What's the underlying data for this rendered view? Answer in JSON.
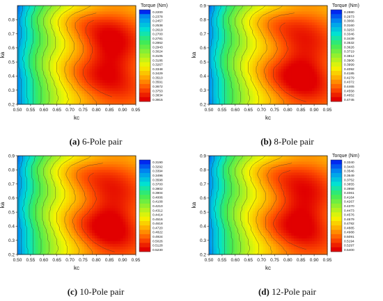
{
  "chart_data": [
    {
      "type": "heatmap",
      "panel_letter": "(a)",
      "caption_text": "6-Pole pair",
      "xlabel": "kc",
      "ylabel": "ka",
      "xlim": [
        0.5,
        0.95
      ],
      "ylim": [
        0.2,
        0.9
      ],
      "xticks": [
        "0.50",
        "0.55",
        "0.60",
        "0.65",
        "0.70",
        "0.75",
        "0.80",
        "0.85",
        "0.90",
        "0.95"
      ],
      "yticks": [
        "0.2",
        "0.3",
        "0.4",
        "0.5",
        "0.6",
        "0.7",
        "0.8"
      ],
      "legend_title": "Torque (Nm)",
      "levels": [
        "0.2200",
        "0.2378",
        "0.2457",
        "0.2538",
        "0.2619",
        "0.2700",
        "0.2781",
        "0.2862",
        "0.2943",
        "0.3024",
        "0.3105",
        "0.3186",
        "0.3267",
        "0.3348",
        "0.3429",
        "0.3510",
        "0.3591",
        "0.3672",
        "0.3753",
        "0.3834",
        "0.3915"
      ],
      "vmin": 0.22,
      "vmax": 0.3915,
      "peak": {
        "x": 0.85,
        "y": 0.55
      }
    },
    {
      "type": "heatmap",
      "panel_letter": "(b)",
      "caption_text": "8-Pole pair",
      "xlabel": "kc",
      "ylabel": "ka",
      "xlim": [
        0.5,
        0.95
      ],
      "ylim": [
        0.2,
        0.9
      ],
      "xticks": [
        "0.50",
        "0.55",
        "0.60",
        "0.65",
        "0.70",
        "0.75",
        "0.80",
        "0.85",
        "0.90",
        "0.95"
      ],
      "yticks": [
        "0.2",
        "0.3",
        "0.4",
        "0.5",
        "0.6",
        "0.7",
        "0.8",
        "0.9"
      ],
      "legend_title": "Torque (Nm)",
      "levels": [
        "0.2880",
        "0.2973",
        "0.3066",
        "0.3160",
        "0.3253",
        "0.3346",
        "0.3439",
        "0.3532",
        "0.3626",
        "0.3719",
        "0.3812",
        "0.3906",
        "0.3999",
        "0.4092",
        "0.4185",
        "0.4279",
        "0.4372",
        "0.4465",
        "0.4558",
        "0.4652",
        "0.4745"
      ],
      "vmin": 0.288,
      "vmax": 0.4745,
      "peak": {
        "x": 0.85,
        "y": 0.45
      }
    },
    {
      "type": "heatmap",
      "panel_letter": "(c)",
      "caption_text": "10-Pole pair",
      "xlabel": "kc",
      "ylabel": "ka",
      "xlim": [
        0.5,
        0.95
      ],
      "ylim": [
        0.2,
        0.9
      ],
      "xticks": [
        "0.50",
        "0.55",
        "0.60",
        "0.65",
        "0.70",
        "0.75",
        "0.80",
        "0.85",
        "0.90",
        "0.95"
      ],
      "yticks": [
        "0.2",
        "0.3",
        "0.4",
        "0.5",
        "0.6",
        "0.7",
        "0.8",
        "0.9"
      ],
      "legend_title": "",
      "levels": [
        "0.3190",
        "0.3292",
        "0.3394",
        "0.3496",
        "0.3598",
        "0.3700",
        "0.3802",
        "0.3904",
        "0.4006",
        "0.4108",
        "0.4210",
        "0.4312",
        "0.4414",
        "0.4516",
        "0.4618",
        "0.4720",
        "0.4822",
        "0.4924",
        "0.5026",
        "0.5128",
        "0.5230"
      ],
      "vmin": 0.319,
      "vmax": 0.523,
      "peak": {
        "x": 0.85,
        "y": 0.45
      }
    },
    {
      "type": "heatmap",
      "panel_letter": "(d)",
      "caption_text": "12-Pole pair",
      "xlabel": "kc",
      "ylabel": "ka",
      "xlim": [
        0.5,
        0.95
      ],
      "ylim": [
        0.2,
        0.9
      ],
      "xticks": [
        "0.50",
        "0.55",
        "0.60",
        "0.65",
        "0.70",
        "0.75",
        "0.80",
        "0.85",
        "0.90",
        "0.95"
      ],
      "yticks": [
        "0.2",
        "0.3",
        "0.4",
        "0.5",
        "0.6",
        "0.7",
        "0.8",
        "0.9"
      ],
      "legend_title": "Torque (Nm)",
      "levels": [
        "0.3340",
        "0.3443",
        "0.3546",
        "0.3649",
        "0.3752",
        "0.3855",
        "0.3958",
        "0.4061",
        "0.4164",
        "0.4267",
        "0.4370",
        "0.4473",
        "0.4576",
        "0.4679",
        "0.4782",
        "0.4885",
        "0.4988",
        "0.5091",
        "0.5194",
        "0.5297",
        "0.5400"
      ],
      "vmin": 0.334,
      "vmax": 0.54,
      "peak": {
        "x": 0.85,
        "y": 0.5
      }
    }
  ]
}
